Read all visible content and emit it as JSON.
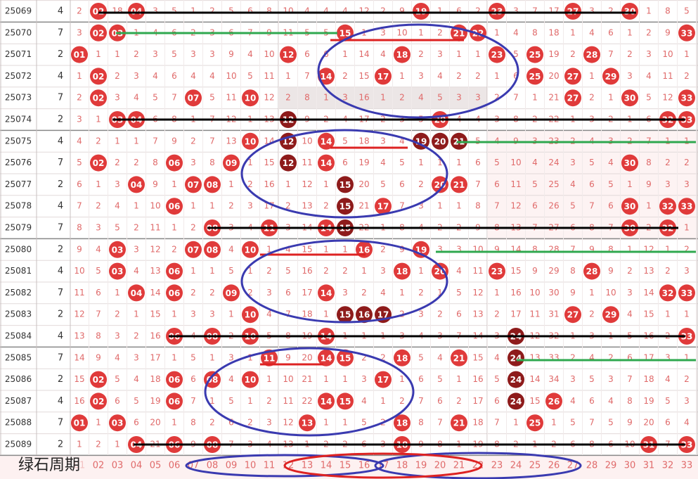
{
  "rows": [
    {
      "period": "25069",
      "digit": "4",
      "misses": [
        2,
        null,
        18,
        null,
        3,
        5,
        1,
        2,
        5,
        6,
        8,
        10,
        4,
        4,
        4,
        12,
        2,
        9,
        null,
        1,
        6,
        2,
        null,
        3,
        7,
        17,
        null,
        3,
        2,
        null,
        1,
        8,
        5
      ],
      "hits": [
        "02",
        "04",
        "19",
        "23",
        "27",
        "30"
      ]
    },
    {
      "period": "25070",
      "digit": "7",
      "misses": [
        3,
        null,
        null,
        1,
        4,
        6,
        2,
        3,
        6,
        7,
        9,
        11,
        5,
        5,
        null,
        1,
        3,
        10,
        1,
        2,
        null,
        null,
        1,
        4,
        8,
        18,
        1,
        4,
        6,
        1,
        2,
        9,
        null
      ],
      "hits": [
        "02",
        "03",
        "15",
        "21",
        "22",
        "33"
      ]
    },
    {
      "period": "25071",
      "digit": "2",
      "misses": [
        null,
        1,
        1,
        2,
        3,
        5,
        3,
        3,
        9,
        4,
        10,
        null,
        6,
        6,
        1,
        14,
        4,
        null,
        2,
        3,
        1,
        1,
        null,
        5,
        null,
        19,
        2,
        null,
        7,
        2,
        3,
        10,
        1
      ],
      "hits": [
        "01",
        "12",
        "18",
        "23",
        "25",
        "28"
      ]
    },
    {
      "period": "25072",
      "digit": "4",
      "misses": [
        1,
        null,
        2,
        3,
        4,
        6,
        4,
        4,
        10,
        5,
        11,
        1,
        7,
        null,
        2,
        15,
        null,
        1,
        3,
        4,
        2,
        2,
        1,
        6,
        null,
        20,
        null,
        1,
        null,
        3,
        4,
        11,
        2
      ],
      "hits": [
        "02",
        "14",
        "17",
        "25",
        "27",
        "29"
      ]
    },
    {
      "period": "25073",
      "digit": "7",
      "misses": [
        2,
        null,
        3,
        4,
        5,
        7,
        null,
        5,
        11,
        null,
        12,
        2,
        8,
        1,
        3,
        16,
        1,
        2,
        4,
        5,
        3,
        3,
        2,
        7,
        1,
        21,
        null,
        2,
        1,
        null,
        5,
        12,
        null
      ],
      "hits": [
        "02",
        "07",
        "10",
        "27",
        "30",
        "33"
      ]
    },
    {
      "period": "25074",
      "digit": "2",
      "misses": [
        3,
        1,
        null,
        null,
        6,
        8,
        1,
        7,
        12,
        1,
        13,
        null,
        9,
        2,
        4,
        17,
        2,
        3,
        5,
        null,
        4,
        4,
        3,
        8,
        2,
        22,
        1,
        3,
        2,
        1,
        6,
        null,
        null
      ],
      "hits": [
        "03",
        "04",
        {
          "label": "12",
          "color": "#8e1b1b"
        },
        "20",
        "32",
        "33"
      ]
    },
    {
      "period": "25075",
      "digit": "4",
      "misses": [
        4,
        2,
        1,
        1,
        7,
        9,
        2,
        7,
        13,
        null,
        14,
        null,
        10,
        null,
        5,
        18,
        3,
        4,
        null,
        null,
        null,
        5,
        4,
        9,
        3,
        23,
        2,
        4,
        3,
        2,
        7,
        1,
        1
      ],
      "hits": [
        "10",
        {
          "label": "12",
          "color": "#8e1b1b"
        },
        "14",
        {
          "label": "19",
          "color": "#8e1b1b"
        },
        {
          "label": "20",
          "color": "#8e1b1b"
        },
        {
          "label": "21",
          "color": "#8e1b1b"
        }
      ]
    },
    {
      "period": "25076",
      "digit": "7",
      "misses": [
        5,
        null,
        2,
        2,
        8,
        null,
        3,
        8,
        null,
        1,
        15,
        null,
        11,
        null,
        6,
        19,
        4,
        5,
        1,
        1,
        1,
        6,
        5,
        10,
        4,
        24,
        3,
        5,
        4,
        null,
        8,
        2,
        2
      ],
      "hits": [
        "02",
        "06",
        "09",
        {
          "label": "12",
          "color": "#8e1b1b"
        },
        "14",
        "30"
      ]
    },
    {
      "period": "25077",
      "digit": "2",
      "misses": [
        6,
        1,
        3,
        null,
        9,
        1,
        null,
        null,
        1,
        2,
        16,
        1,
        12,
        1,
        null,
        20,
        5,
        6,
        2,
        null,
        null,
        7,
        6,
        11,
        5,
        25,
        4,
        6,
        5,
        1,
        9,
        3,
        3
      ],
      "hits": [
        "04",
        "07",
        "08",
        {
          "label": "15",
          "color": "#8e1b1b"
        },
        "20",
        "21"
      ]
    },
    {
      "period": "25078",
      "digit": "4",
      "misses": [
        7,
        2,
        4,
        1,
        10,
        null,
        1,
        1,
        2,
        3,
        17,
        2,
        13,
        2,
        null,
        21,
        null,
        7,
        3,
        1,
        1,
        8,
        7,
        12,
        6,
        26,
        5,
        7,
        6,
        null,
        1,
        null,
        null
      ],
      "hits": [
        "06",
        {
          "label": "15",
          "color": "#8e1b1b"
        },
        "17",
        "30",
        "32",
        "33"
      ]
    },
    {
      "period": "25079",
      "digit": "7",
      "misses": [
        8,
        3,
        5,
        2,
        11,
        1,
        2,
        null,
        3,
        4,
        null,
        3,
        14,
        null,
        null,
        22,
        1,
        8,
        4,
        2,
        2,
        9,
        8,
        13,
        7,
        27,
        6,
        8,
        7,
        null,
        2,
        null,
        1
      ],
      "hits": [
        "08",
        "11",
        "14",
        {
          "label": "15",
          "color": "#8e1b1b"
        },
        "30",
        "32"
      ]
    },
    {
      "period": "25080",
      "digit": "2",
      "misses": [
        9,
        4,
        null,
        3,
        12,
        2,
        null,
        null,
        4,
        null,
        1,
        4,
        15,
        1,
        1,
        null,
        2,
        9,
        null,
        3,
        3,
        10,
        9,
        14,
        8,
        28,
        7,
        9,
        8,
        1,
        12,
        1,
        2
      ],
      "hits": [
        "03",
        "07",
        "08",
        "10",
        "16",
        "19"
      ]
    },
    {
      "period": "25081",
      "digit": "4",
      "misses": [
        10,
        5,
        null,
        4,
        13,
        null,
        1,
        1,
        5,
        1,
        2,
        5,
        16,
        2,
        2,
        1,
        3,
        null,
        1,
        null,
        4,
        11,
        null,
        15,
        9,
        29,
        8,
        null,
        9,
        2,
        13,
        2,
        3
      ],
      "hits": [
        "03",
        "06",
        "18",
        "20",
        "23",
        "28"
      ]
    },
    {
      "period": "25082",
      "digit": "7",
      "misses": [
        11,
        6,
        1,
        null,
        14,
        null,
        2,
        2,
        null,
        2,
        3,
        6,
        17,
        null,
        3,
        2,
        4,
        1,
        2,
        1,
        5,
        12,
        1,
        16,
        10,
        30,
        9,
        1,
        10,
        3,
        14,
        null,
        null
      ],
      "hits": [
        "04",
        "06",
        "09",
        "14",
        "32",
        "33"
      ]
    },
    {
      "period": "25083",
      "digit": "2",
      "misses": [
        12,
        7,
        2,
        1,
        15,
        1,
        3,
        3,
        1,
        null,
        4,
        7,
        18,
        1,
        null,
        null,
        null,
        2,
        3,
        2,
        6,
        13,
        2,
        17,
        11,
        31,
        null,
        2,
        null,
        4,
        15,
        1,
        1
      ],
      "hits": [
        "10",
        {
          "label": "15",
          "color": "#8e1b1b"
        },
        {
          "label": "16",
          "color": "#8e1b1b"
        },
        {
          "label": "17",
          "color": "#8e1b1b"
        },
        "27",
        "29"
      ]
    },
    {
      "period": "25084",
      "digit": "4",
      "misses": [
        13,
        8,
        3,
        2,
        16,
        null,
        4,
        null,
        2,
        null,
        5,
        8,
        19,
        null,
        1,
        1,
        1,
        3,
        4,
        3,
        7,
        14,
        3,
        null,
        12,
        32,
        1,
        3,
        1,
        5,
        16,
        2,
        null
      ],
      "hits": [
        "06",
        "08",
        "10",
        "14",
        {
          "label": "24",
          "color": "#8e1b1b"
        },
        "33"
      ]
    },
    {
      "period": "25085",
      "digit": "7",
      "misses": [
        14,
        9,
        4,
        3,
        17,
        1,
        5,
        1,
        3,
        1,
        null,
        9,
        20,
        null,
        null,
        2,
        2,
        null,
        5,
        4,
        null,
        15,
        4,
        null,
        13,
        33,
        2,
        4,
        2,
        6,
        17,
        3,
        1
      ],
      "hits": [
        "11",
        "14",
        "15",
        "18",
        "21",
        {
          "label": "24",
          "color": "#8e1b1b"
        }
      ]
    },
    {
      "period": "25086",
      "digit": "2",
      "misses": [
        15,
        null,
        5,
        4,
        18,
        null,
        6,
        null,
        4,
        null,
        1,
        10,
        21,
        1,
        1,
        3,
        null,
        1,
        6,
        5,
        1,
        16,
        5,
        null,
        14,
        34,
        3,
        5,
        3,
        7,
        18,
        4,
        2
      ],
      "hits": [
        "02",
        "06",
        "08",
        "10",
        "17",
        {
          "label": "24",
          "color": "#8e1b1b"
        }
      ]
    },
    {
      "period": "25087",
      "digit": "4",
      "misses": [
        16,
        null,
        6,
        5,
        19,
        null,
        7,
        1,
        5,
        1,
        2,
        11,
        22,
        null,
        null,
        4,
        1,
        2,
        7,
        6,
        2,
        17,
        6,
        null,
        15,
        null,
        4,
        6,
        4,
        8,
        19,
        5,
        3
      ],
      "hits": [
        "02",
        "06",
        "14",
        "15",
        {
          "label": "24",
          "color": "#8e1b1b"
        },
        "26"
      ]
    },
    {
      "period": "25088",
      "digit": "7",
      "misses": [
        null,
        1,
        null,
        6,
        20,
        1,
        8,
        2,
        6,
        2,
        3,
        12,
        null,
        1,
        1,
        5,
        2,
        null,
        8,
        7,
        null,
        18,
        7,
        1,
        null,
        1,
        5,
        7,
        5,
        9,
        20,
        6,
        4
      ],
      "hits": [
        "01",
        "03",
        "13",
        "18",
        "21",
        "25"
      ]
    },
    {
      "period": "25089",
      "digit": "2",
      "misses": [
        1,
        2,
        1,
        null,
        21,
        null,
        9,
        null,
        7,
        3,
        4,
        13,
        1,
        2,
        2,
        6,
        3,
        null,
        9,
        8,
        1,
        19,
        8,
        2,
        1,
        2,
        6,
        8,
        6,
        10,
        null,
        7,
        null
      ],
      "hits": [
        "04",
        "06",
        "08",
        "18",
        "31",
        "33"
      ]
    }
  ],
  "footer": {
    "label": "绿石周期",
    "numbers": [
      "01",
      "02",
      "03",
      "04",
      "05",
      "06",
      "07",
      "08",
      "09",
      "10",
      "11",
      "12",
      "13",
      "14",
      "15",
      "16",
      "17",
      "18",
      "19",
      "20",
      "21",
      "22",
      "23",
      "24",
      "25",
      "26",
      "27",
      "28",
      "29",
      "30",
      "31",
      "32",
      "33"
    ]
  }
}
